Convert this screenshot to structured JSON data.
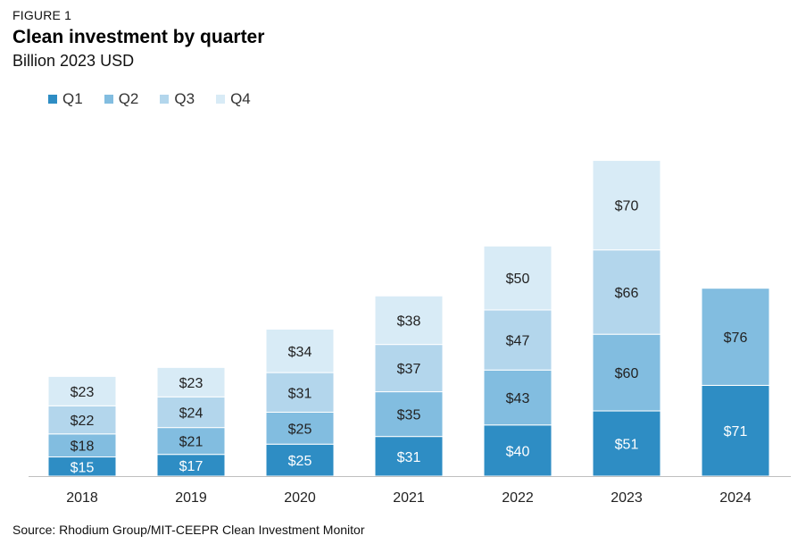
{
  "figure_label": "FIGURE 1",
  "source": "Source: Rhodium Group/MIT-CEEPR Clean Investment Monitor",
  "chart_data": {
    "type": "bar",
    "stacked": true,
    "title": "Clean investment by quarter",
    "subtitle": "Billion 2023 USD",
    "xlabel": "",
    "ylabel": "",
    "categories": [
      "2018",
      "2019",
      "2020",
      "2021",
      "2022",
      "2023",
      "2024"
    ],
    "series": [
      {
        "name": "Q1",
        "color": "#2e8dc4",
        "label_color": "#ffffff",
        "values": [
          15,
          17,
          25,
          31,
          40,
          51,
          71
        ]
      },
      {
        "name": "Q2",
        "color": "#82bde0",
        "label_color": "#222222",
        "values": [
          18,
          21,
          25,
          35,
          43,
          60,
          76
        ]
      },
      {
        "name": "Q3",
        "color": "#b3d6ec",
        "label_color": "#222222",
        "values": [
          22,
          24,
          31,
          37,
          47,
          66,
          null
        ]
      },
      {
        "name": "Q4",
        "color": "#d8ebf6",
        "label_color": "#222222",
        "values": [
          23,
          23,
          34,
          38,
          50,
          70,
          null
        ]
      }
    ],
    "value_prefix": "$",
    "grid": false,
    "legend_position": "top-left"
  }
}
